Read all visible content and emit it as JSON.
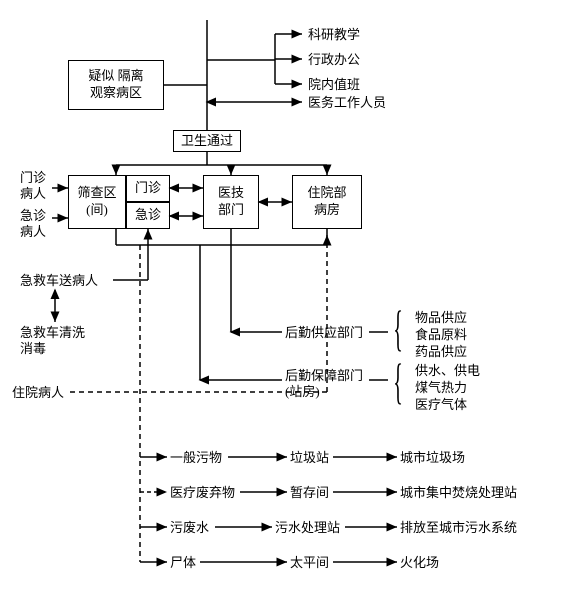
{
  "type": "flowchart",
  "background_color": "#ffffff",
  "stroke_color": "#000000",
  "font_size": 13,
  "boxes": {
    "isolation": "疑似 隔离\n观察病区",
    "sanitary": "卫生通过",
    "screening": "筛查区\n(间)",
    "outpatient": "门诊",
    "emergency": "急诊",
    "medtech": "医技\n部门",
    "inpatient_ward": "住院部\n病房"
  },
  "left_inputs": {
    "outpatient_patient": "门诊\n病人",
    "emergency_patient": "急诊\n病人",
    "ambulance_send": "急救车送病人",
    "ambulance_clean": "急救车清洗\n消毒",
    "inpatient": "住院病人"
  },
  "top_outputs": {
    "research": "科研教学",
    "admin": "行政办公",
    "duty": "院内值班",
    "medstaff": "医务工作人员"
  },
  "logistics": {
    "supply_dept": "后勤供应部门",
    "support_dept": "后勤保障部门\n(站房)",
    "goods": "物品供应",
    "food": "食品原料",
    "drugs": "药品供应",
    "water_elec": "供水、供电",
    "gas_heat": "煤气热力",
    "med_gas": "医疗气体"
  },
  "waste": {
    "general": "一般污物",
    "medical": "医疗废弃物",
    "sewage": "污废水",
    "corpse": "尸体",
    "garbage_station": "垃圾站",
    "storage": "暂存间",
    "sewage_plant": "污水处理站",
    "morgue": "太平间",
    "city_garbage": "城市垃圾场",
    "city_incinerate": "城市集中焚烧处理站",
    "city_sewage": "排放至城市污水系统",
    "crematorium": "火化场"
  }
}
